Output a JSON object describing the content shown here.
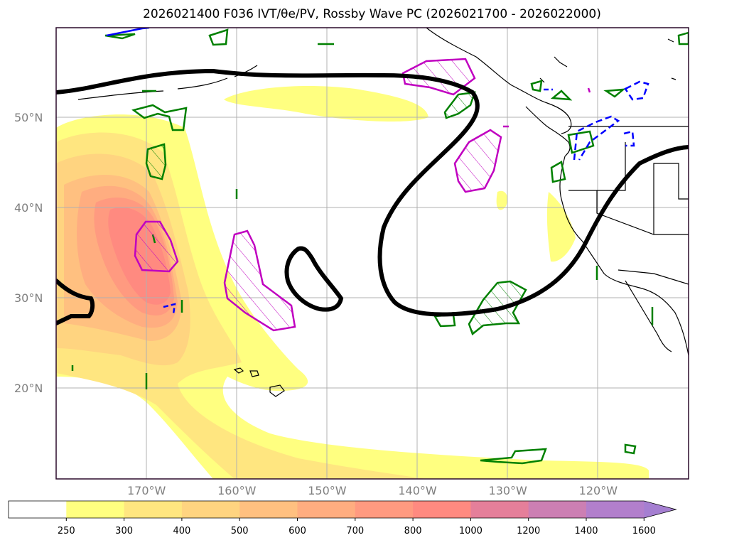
{
  "title": "2026021400 F036 IVT/θe/PV, Rossby Wave PC (2026021700 - 2026022000)",
  "map": {
    "projection": "equirectangular",
    "lon_range": [
      -180,
      -110
    ],
    "lat_range": [
      10,
      60
    ],
    "grid": true,
    "lat_ticks": [
      {
        "lat": 50,
        "label": "50°N"
      },
      {
        "lat": 40,
        "label": "40°N"
      },
      {
        "lat": 30,
        "label": "30°N"
      },
      {
        "lat": 20,
        "label": "20°N"
      }
    ],
    "lon_ticks": [
      {
        "lon": -170,
        "label": "170°W"
      },
      {
        "lon": -160,
        "label": "160°W"
      },
      {
        "lon": -150,
        "label": "150°W"
      },
      {
        "lon": -140,
        "label": "140°W"
      },
      {
        "lon": -130,
        "label": "130°W"
      },
      {
        "lon": -120,
        "label": "120°W"
      }
    ]
  },
  "colorbar": {
    "labels": [
      "250",
      "300",
      "400",
      "500",
      "600",
      "700",
      "800",
      "1000",
      "1200",
      "1400",
      "1600"
    ],
    "colors": [
      "#ffffff",
      "#ffff80",
      "#ffe680",
      "#ffd480",
      "#ffc080",
      "#ffad80",
      "#ff9a80",
      "#ff8a80",
      "#e57f9a",
      "#cc7fb3",
      "#b27fcc",
      "#a57fd1"
    ],
    "extend": "max"
  },
  "colors": {
    "rossby_wave": "#000000",
    "pv_hatch": "#c000c0",
    "theta_e_solid": "#008000",
    "theta_e_dashed": "#0000ff",
    "coastline": "#000000",
    "grid": "#b0b0b0"
  }
}
